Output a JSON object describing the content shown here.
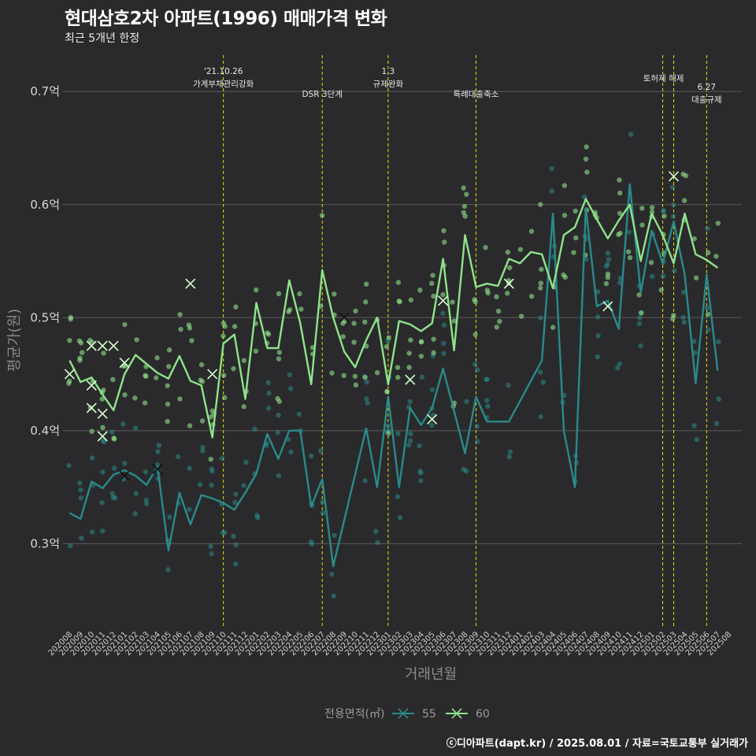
{
  "title": "현대삼호2차 아파트(1996) 매매가격 변화",
  "subtitle": "최근 5개년 한정",
  "caption": "ⓒ디아파트(dapt.kr) / 2025.08.01 / 자료=국토교통부 실거래가",
  "colors": {
    "background": "#2a2a2c",
    "grid": "#5a5a5a",
    "event_line": "#e3e000",
    "series_55": "#2a8a8a",
    "series_60": "#8fe38a"
  },
  "chart_data": {
    "type": "line",
    "xlabel": "거래년월",
    "ylabel": "평균가(원)",
    "x_ticks": [
      "202008",
      "202009",
      "202010",
      "202011",
      "202012",
      "202101",
      "202102",
      "202103",
      "202104",
      "202105",
      "202106",
      "202107",
      "202108",
      "202109",
      "202110",
      "202111",
      "202112",
      "202201",
      "202202",
      "202203",
      "202204",
      "202205",
      "202206",
      "202207",
      "202208",
      "202209",
      "202210",
      "202211",
      "202212",
      "202301",
      "202302",
      "202303",
      "202304",
      "202305",
      "202306",
      "202307",
      "202308",
      "202309",
      "202310",
      "202311",
      "202312",
      "202401",
      "202402",
      "202403",
      "202404",
      "202405",
      "202406",
      "202407",
      "202408",
      "202409",
      "202410",
      "202411",
      "202412",
      "202501",
      "202502",
      "202503",
      "202504",
      "202505",
      "202506",
      "202507",
      "202508"
    ],
    "y_ticks": [
      {
        "value": 0.3,
        "label": "0.3억"
      },
      {
        "value": 0.4,
        "label": "0.4억"
      },
      {
        "value": 0.5,
        "label": "0.5억"
      },
      {
        "value": 0.6,
        "label": "0.6억"
      },
      {
        "value": 0.7,
        "label": "0.7억"
      }
    ],
    "ylim": [
      0.225,
      0.735
    ],
    "grid": true,
    "legend": {
      "title": "전용면적(㎡)",
      "position": "bottom"
    },
    "events": [
      {
        "x": "202110",
        "label": "'21.10.26\n가계부채관리강화"
      },
      {
        "x": "202207",
        "label": "DSR 3단계"
      },
      {
        "x": "202301",
        "label": "1.3\n규제완화"
      },
      {
        "x": "202309",
        "label": "특례대출축소"
      },
      {
        "x": "202502",
        "label": "토허제 해제"
      },
      {
        "x": "202503",
        "label": ""
      },
      {
        "x": "202506",
        "label": "6.27\n대출규제"
      }
    ],
    "series": [
      {
        "name": "55",
        "color": "#2a8a8a",
        "line": [
          [
            "202008",
            0.327
          ],
          [
            "202009",
            0.322
          ],
          [
            "202010",
            0.355
          ],
          [
            "202011",
            0.349
          ],
          [
            "202012",
            0.361
          ],
          [
            "202101",
            0.365
          ],
          [
            "202102",
            0.36
          ],
          [
            "202103",
            0.352
          ],
          [
            "202104",
            0.368
          ],
          [
            "202105",
            0.294
          ],
          [
            "202106",
            0.345
          ],
          [
            "202107",
            0.317
          ],
          [
            "202108",
            0.343
          ],
          [
            "202109",
            0.34
          ],
          [
            "202110",
            0.336
          ],
          [
            "202111",
            0.33
          ],
          [
            "202112",
            0.345
          ],
          [
            "202201",
            0.362
          ],
          [
            "202202",
            0.397
          ],
          [
            "202203",
            0.375
          ],
          [
            "202204",
            0.4
          ],
          [
            "202205",
            0.4
          ],
          [
            "202206",
            0.333
          ],
          [
            "202207",
            0.357
          ],
          [
            "202208",
            0.28
          ],
          [
            "202211",
            0.402
          ],
          [
            "202212",
            0.35
          ],
          [
            "202301",
            0.43
          ],
          [
            "202302",
            0.35
          ],
          [
            "202303",
            0.42
          ],
          [
            "202304",
            0.405
          ],
          [
            "202305",
            0.42
          ],
          [
            "202306",
            0.455
          ],
          [
            "202308",
            0.38
          ],
          [
            "202309",
            0.43
          ],
          [
            "202310",
            0.408
          ],
          [
            "202312",
            0.408
          ],
          [
            "202403",
            0.462
          ],
          [
            "202404",
            0.592
          ],
          [
            "202405",
            0.4
          ],
          [
            "202406",
            0.35
          ],
          [
            "202407",
            0.597
          ],
          [
            "202408",
            0.51
          ],
          [
            "202409",
            0.515
          ],
          [
            "202410",
            0.49
          ],
          [
            "202411",
            0.618
          ],
          [
            "202412",
            0.522
          ],
          [
            "202501",
            0.577
          ],
          [
            "202502",
            0.548
          ],
          [
            "202503",
            0.585
          ],
          [
            "202504",
            0.538
          ],
          [
            "202505",
            0.442
          ],
          [
            "202506",
            0.538
          ],
          [
            "202507",
            0.453
          ]
        ],
        "markers": [
          [
            "202101",
            0.36
          ],
          [
            "202104",
            0.366
          ],
          [
            "202209",
            0.5
          ]
        ]
      },
      {
        "name": "60",
        "color": "#8fe38a",
        "line": [
          [
            "202008",
            0.462
          ],
          [
            "202009",
            0.443
          ],
          [
            "202010",
            0.447
          ],
          [
            "202011",
            0.432
          ],
          [
            "202012",
            0.418
          ],
          [
            "202101",
            0.45
          ],
          [
            "202102",
            0.467
          ],
          [
            "202103",
            0.459
          ],
          [
            "202104",
            0.451
          ],
          [
            "202105",
            0.446
          ],
          [
            "202106",
            0.466
          ],
          [
            "202107",
            0.444
          ],
          [
            "202108",
            0.44
          ],
          [
            "202109",
            0.394
          ],
          [
            "202110",
            0.477
          ],
          [
            "202111",
            0.485
          ],
          [
            "202112",
            0.428
          ],
          [
            "202201",
            0.513
          ],
          [
            "202202",
            0.473
          ],
          [
            "202203",
            0.473
          ],
          [
            "202204",
            0.533
          ],
          [
            "202205",
            0.495
          ],
          [
            "202206",
            0.441
          ],
          [
            "202207",
            0.542
          ],
          [
            "202208",
            0.5
          ],
          [
            "202209",
            0.47
          ],
          [
            "202210",
            0.456
          ],
          [
            "202211",
            0.48
          ],
          [
            "202212",
            0.5
          ],
          [
            "202301",
            0.441
          ],
          [
            "202302",
            0.497
          ],
          [
            "202303",
            0.494
          ],
          [
            "202304",
            0.488
          ],
          [
            "202305",
            0.495
          ],
          [
            "202306",
            0.552
          ],
          [
            "202307",
            0.471
          ],
          [
            "202308",
            0.573
          ],
          [
            "202309",
            0.527
          ],
          [
            "202310",
            0.53
          ],
          [
            "202311",
            0.528
          ],
          [
            "202312",
            0.552
          ],
          [
            "202401",
            0.548
          ],
          [
            "202402",
            0.558
          ],
          [
            "202403",
            0.556
          ],
          [
            "202404",
            0.526
          ],
          [
            "202405",
            0.573
          ],
          [
            "202406",
            0.58
          ],
          [
            "202407",
            0.605
          ],
          [
            "202408",
            0.587
          ],
          [
            "202409",
            0.57
          ],
          [
            "202410",
            0.586
          ],
          [
            "202411",
            0.6
          ],
          [
            "202412",
            0.55
          ],
          [
            "202501",
            0.592
          ],
          [
            "202502",
            0.573
          ],
          [
            "202503",
            0.548
          ],
          [
            "202504",
            0.592
          ],
          [
            "202505",
            0.556
          ],
          [
            "202506",
            0.551
          ],
          [
            "202507",
            0.544
          ]
        ],
        "markers": [
          [
            "202008",
            0.45
          ],
          [
            "202010",
            0.475
          ],
          [
            "202010",
            0.44
          ],
          [
            "202010",
            0.42
          ],
          [
            "202011",
            0.475
          ],
          [
            "202011",
            0.415
          ],
          [
            "202011",
            0.395
          ],
          [
            "202012",
            0.475
          ],
          [
            "202101",
            0.46
          ],
          [
            "202107",
            0.53
          ],
          [
            "202109",
            0.45
          ],
          [
            "202303",
            0.445
          ],
          [
            "202305",
            0.41
          ],
          [
            "202306",
            0.515
          ],
          [
            "202312",
            0.53
          ],
          [
            "202409",
            0.51
          ],
          [
            "202503",
            0.625
          ]
        ]
      }
    ]
  }
}
